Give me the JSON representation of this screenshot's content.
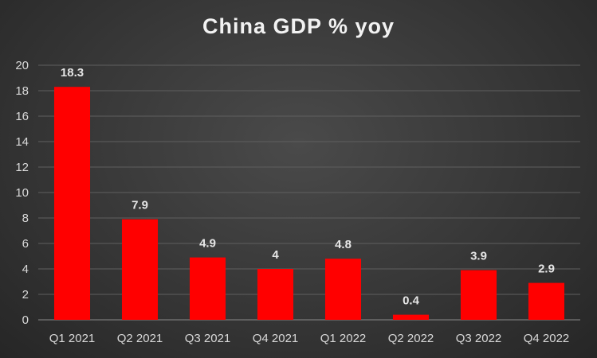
{
  "chart_data": {
    "type": "bar",
    "title": "China GDP % yoy",
    "xlabel": "",
    "ylabel": "",
    "categories": [
      "Q1 2021",
      "Q2 2021",
      "Q3 2021",
      "Q4 2021",
      "Q1 2022",
      "Q2 2022",
      "Q3 2022",
      "Q4 2022"
    ],
    "values": [
      18.3,
      7.9,
      4.9,
      4,
      4.8,
      0.4,
      3.9,
      2.9
    ],
    "ylim": [
      0,
      20
    ],
    "yticks": [
      0,
      2,
      4,
      6,
      8,
      10,
      12,
      14,
      16,
      18,
      20
    ],
    "grid": true,
    "legend": "none",
    "bar_color": "#ff0000",
    "data_labels": true
  }
}
